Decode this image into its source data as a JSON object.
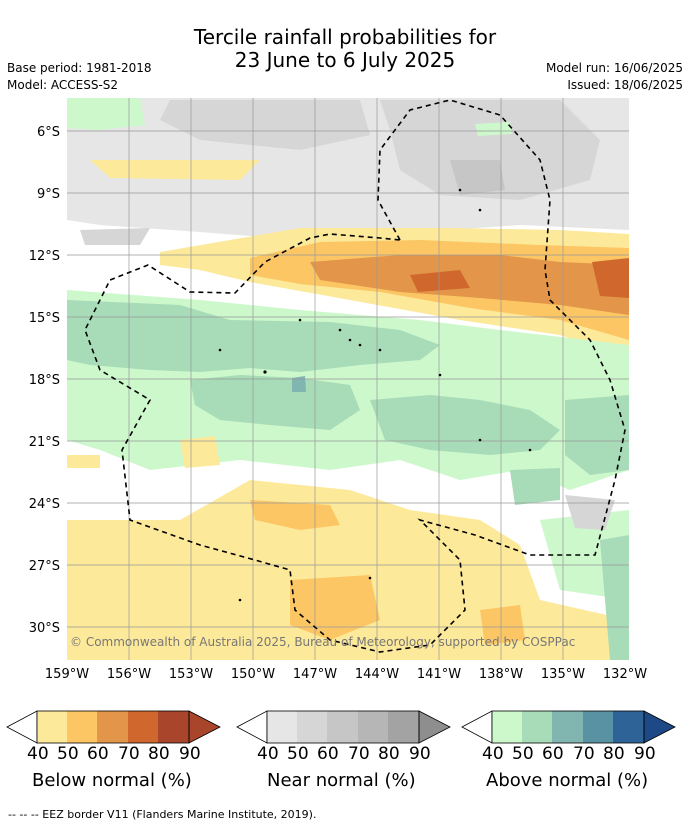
{
  "header": {
    "title_line1": "Tercile rainfall probabilities for",
    "title_line2": "23 June to 6 July 2025",
    "base_period": "Base period: 1981-2018",
    "model": "Model: ACCESS-S2",
    "model_run": "Model run: 16/06/2025",
    "issued": "Issued: 18/06/2025"
  },
  "map": {
    "lat_labels": [
      "6°S",
      "9°S",
      "12°S",
      "15°S",
      "18°S",
      "21°S",
      "24°S",
      "27°S",
      "30°S"
    ],
    "lon_labels": [
      "159°W",
      "156°W",
      "153°W",
      "150°W",
      "147°W",
      "144°W",
      "141°W",
      "138°W",
      "135°W",
      "132°W"
    ],
    "copyright": "© Commonwealth of Australia 2025, Bureau of Meteorology, supported by COSPPac"
  },
  "legend": {
    "below": {
      "label": "Below normal (%)",
      "ticks": [
        "40",
        "50",
        "60",
        "70",
        "80",
        "90"
      ],
      "colors": [
        "#fde99a",
        "#fcc664",
        "#e3964a",
        "#d0682e",
        "#a8452a",
        "#a8452a"
      ]
    },
    "near": {
      "label": "Near normal (%)",
      "ticks": [
        "40",
        "50",
        "60",
        "70",
        "80",
        "90"
      ],
      "colors": [
        "#e6e6e6",
        "#d6d6d6",
        "#c6c6c6",
        "#b6b6b6",
        "#a3a3a3",
        "#8e8e8e"
      ]
    },
    "above": {
      "label": "Above normal (%)",
      "ticks": [
        "40",
        "50",
        "60",
        "70",
        "80",
        "90"
      ],
      "colors": [
        "#ccf8cc",
        "#a8dbb8",
        "#80b5b0",
        "#5892a3",
        "#2e6398",
        "#1d4a86"
      ]
    }
  },
  "footnote": "--  --  -- EEZ border V11 (Flanders Marine Institute, 2019)."
}
